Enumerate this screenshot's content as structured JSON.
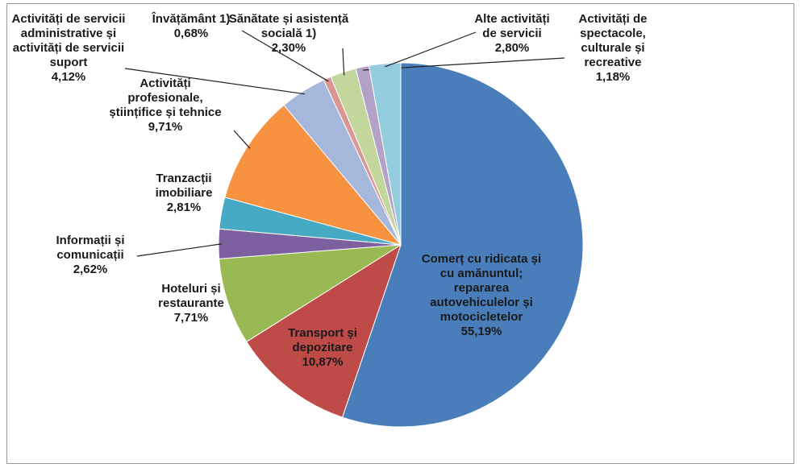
{
  "chart_data": {
    "type": "pie",
    "categories": [
      "Comerț cu ridicata și cu amănuntul; repararea autovehiculelor și motocicletelor",
      "Transport și depozitare",
      "Hoteluri și restaurante",
      "Informații și comunicații",
      "Tranzacții imobiliare",
      "Activități profesionale, științifice și tehnice",
      "Activități de servicii administrative și activități de servicii suport",
      "Învățământ 1)",
      "Sănătate și asistență socială 1)",
      "Activități de spectacole, culturale și recreative",
      "Alte activități de servicii"
    ],
    "values": [
      55.19,
      10.87,
      7.71,
      2.62,
      2.81,
      9.71,
      4.12,
      0.68,
      2.3,
      1.18,
      2.8
    ],
    "value_labels": [
      "55,19%",
      "10,87%",
      "7,71%",
      "2,62%",
      "2,81%",
      "9,71%",
      "4,12%",
      "0,68%",
      "2,30%",
      "1,18%",
      "2,80%"
    ],
    "colors": [
      "#4a7ebb",
      "#be4b48",
      "#98b954",
      "#7d60a0",
      "#46aac5",
      "#f69240",
      "#a5b8dc",
      "#d99694",
      "#c3d69b",
      "#b3a2c7",
      "#93cddd"
    ]
  }
}
